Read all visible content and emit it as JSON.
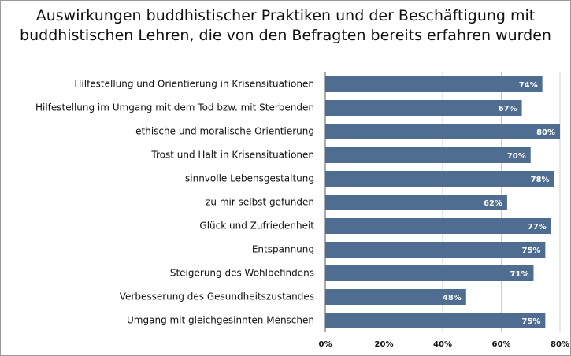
{
  "chart_data": {
    "type": "bar",
    "orientation": "horizontal",
    "title": "Auswirkungen buddhistischer Praktiken und der Beschäftigung mit buddhistischen Lehren, die von den Befragten bereits erfahren wurden",
    "categories": [
      "Hilfestellung und Orientierung in Krisensituationen",
      "Hilfestellung im Umgang mit dem Tod bzw. mit Sterbenden",
      "ethische und moralische Orientierung",
      "Trost und Halt in Krisensituationen",
      "sinnvolle Lebensgestaltung",
      "zu mir selbst gefunden",
      "Glück und Zufriedenheit",
      "Entspannung",
      "Steigerung des Wohlbefindens",
      "Verbesserung des Gesundheitszustandes",
      "Umgang mit gleichgesinnten Menschen"
    ],
    "values": [
      74,
      67,
      80,
      70,
      78,
      62,
      77,
      75,
      71,
      48,
      75
    ],
    "value_labels": [
      "74%",
      "67%",
      "80%",
      "70%",
      "78%",
      "62%",
      "77%",
      "75%",
      "71%",
      "48%",
      "75%"
    ],
    "color": "#4f6d90",
    "xlim": [
      0,
      80
    ],
    "xticks": [
      {
        "value": 0,
        "label": "0%"
      },
      {
        "value": 20,
        "label": "20%"
      },
      {
        "value": 40,
        "label": "40%"
      },
      {
        "value": 60,
        "label": "60%"
      },
      {
        "value": 80,
        "label": "80%"
      }
    ],
    "grid": true
  }
}
